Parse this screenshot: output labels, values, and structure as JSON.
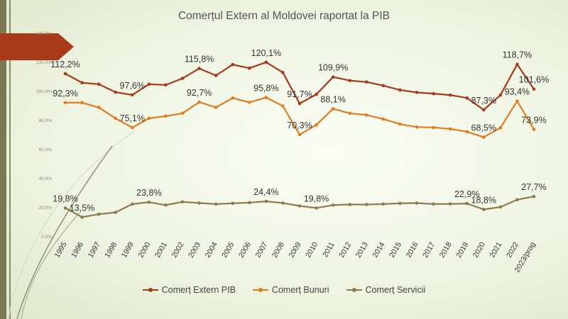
{
  "chart_data": {
    "type": "line",
    "title": "Comerțul Extern al Moldovei raportat la PIB",
    "xlabel": "",
    "ylabel": "",
    "ylim": [
      0,
      140
    ],
    "yticks": [
      "0,0%",
      "20,0%",
      "40,0%",
      "60,0%",
      "80,0%",
      "100,0%",
      "120,0%",
      "140,0%"
    ],
    "grid": false,
    "legend_position": "bottom",
    "categories": [
      "1995",
      "1996",
      "1997",
      "1998",
      "1999",
      "2000",
      "2001",
      "2002",
      "2003",
      "2004",
      "2005",
      "2006",
      "2007",
      "2008",
      "2009",
      "2010",
      "2011",
      "2012",
      "2013",
      "2014",
      "2015",
      "2016",
      "2017",
      "2018",
      "2019",
      "2020",
      "2021",
      "2022",
      "2023/prog"
    ],
    "series": [
      {
        "name": "Comerț Extern PIB",
        "color": "#a33a1c",
        "values": [
          112.2,
          106,
          105,
          99.5,
          97.6,
          105,
          104.5,
          109,
          115.8,
          111,
          118.5,
          116,
          120.1,
          113,
          91.7,
          98,
          109.9,
          107.5,
          106.5,
          104,
          101,
          99.3,
          98.5,
          97.5,
          95.5,
          87.3,
          97.5,
          118.7,
          101.6
        ],
        "labels": [
          {
            "i": 0,
            "text": "112,2%",
            "pos": "above"
          },
          {
            "i": 4,
            "text": "97,6%",
            "pos": "above"
          },
          {
            "i": 8,
            "text": "115,8%",
            "pos": "above"
          },
          {
            "i": 12,
            "text": "120,1%",
            "pos": "above"
          },
          {
            "i": 14,
            "text": "91,7%",
            "pos": "above"
          },
          {
            "i": 16,
            "text": "109,9%",
            "pos": "above"
          },
          {
            "i": 25,
            "text": "87,3%",
            "pos": "above"
          },
          {
            "i": 27,
            "text": "118,7%",
            "pos": "above"
          },
          {
            "i": 28,
            "text": "101,6%",
            "pos": "above"
          }
        ]
      },
      {
        "name": "Comerț Bunuri",
        "color": "#e07c1f",
        "values": [
          92.3,
          92.3,
          89,
          81.5,
          75.1,
          81.5,
          83,
          85,
          92.7,
          89,
          95.5,
          92.5,
          95.8,
          90,
          70.3,
          77,
          88.1,
          85,
          83.8,
          81,
          77.5,
          75.5,
          75.2,
          74.2,
          72.3,
          68.5,
          75,
          93.4,
          73.9
        ],
        "labels": [
          {
            "i": 0,
            "text": "92,3%",
            "pos": "above"
          },
          {
            "i": 4,
            "text": "75,1%",
            "pos": "above"
          },
          {
            "i": 8,
            "text": "92,7%",
            "pos": "above"
          },
          {
            "i": 12,
            "text": "95,8%",
            "pos": "above"
          },
          {
            "i": 14,
            "text": "70,3%",
            "pos": "above"
          },
          {
            "i": 16,
            "text": "88,1%",
            "pos": "above"
          },
          {
            "i": 25,
            "text": "68,5%",
            "pos": "above"
          },
          {
            "i": 27,
            "text": "93,4%",
            "pos": "above"
          },
          {
            "i": 28,
            "text": "73,9%",
            "pos": "above"
          }
        ]
      },
      {
        "name": "Comerț Servicii",
        "color": "#8c7b4f",
        "values": [
          19.8,
          13.5,
          15.5,
          16.8,
          22.5,
          23.8,
          21.8,
          24,
          23.2,
          22.5,
          23,
          23.5,
          24.4,
          23.2,
          21.2,
          19.8,
          21.8,
          22.2,
          22.2,
          22.5,
          23,
          23.2,
          22.5,
          22.6,
          22.9,
          18.8,
          20.5,
          25.5,
          27.7
        ],
        "labels": [
          {
            "i": 0,
            "text": "19,8%",
            "pos": "above"
          },
          {
            "i": 1,
            "text": "13,5%",
            "pos": "above"
          },
          {
            "i": 5,
            "text": "23,8%",
            "pos": "above"
          },
          {
            "i": 12,
            "text": "24,4%",
            "pos": "above"
          },
          {
            "i": 15,
            "text": "19,8%",
            "pos": "above"
          },
          {
            "i": 24,
            "text": "22,9%",
            "pos": "above"
          },
          {
            "i": 25,
            "text": "18,8%",
            "pos": "above"
          },
          {
            "i": 28,
            "text": "27,7%",
            "pos": "above"
          }
        ]
      }
    ]
  }
}
